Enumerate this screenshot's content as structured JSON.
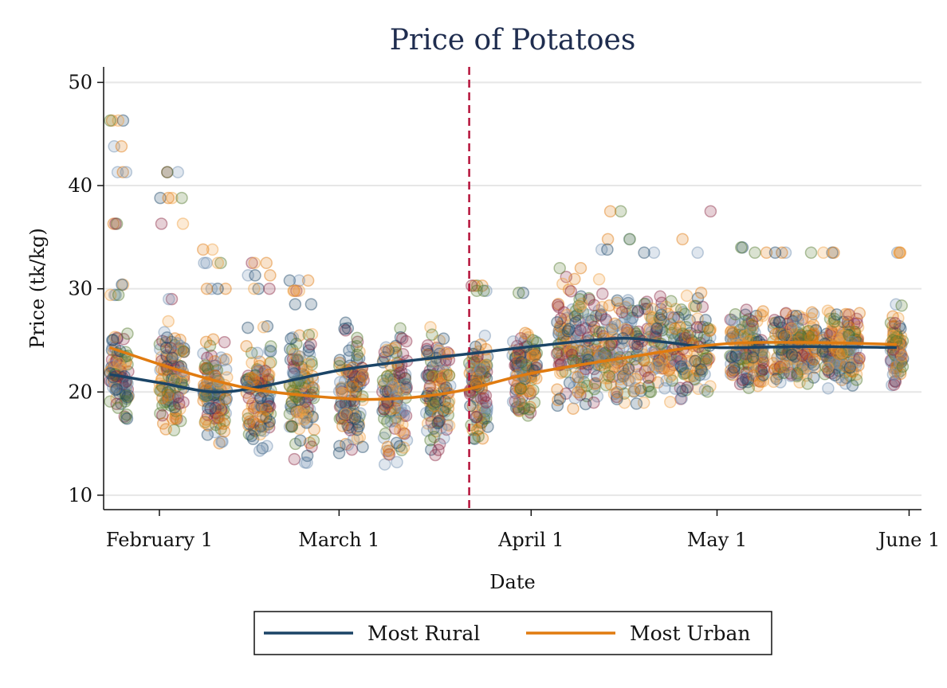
{
  "chart_data": {
    "type": "scatter",
    "title": "Price of Potatoes",
    "xlabel": "Date",
    "ylabel": "Price (tk/kg)",
    "x_ticks": [
      "February 1",
      "March 1",
      "April 1",
      "May 1",
      "June 1"
    ],
    "y_ticks": [
      10,
      20,
      30,
      40,
      50
    ],
    "ylim": [
      8.6,
      51.5
    ],
    "xlim": [
      "2020-01-23",
      "2020-06-03"
    ],
    "grid": true,
    "legend_position": "bottom",
    "reference_line": {
      "x": "2020-03-22",
      "style": "dashed",
      "color": "#b5123a"
    },
    "series": [
      {
        "name": "Most Rural",
        "type": "line",
        "color": "#1b4466",
        "x": [
          "2020-01-24",
          "2020-02-01",
          "2020-02-10",
          "2020-02-18",
          "2020-03-01",
          "2020-03-12",
          "2020-03-22",
          "2020-04-01",
          "2020-04-15",
          "2020-04-23",
          "2020-05-01",
          "2020-05-15",
          "2020-05-30"
        ],
        "values": [
          21.7,
          20.9,
          20.0,
          20.6,
          22.1,
          23.0,
          23.7,
          24.4,
          25.2,
          24.8,
          24.3,
          24.4,
          24.3
        ]
      },
      {
        "name": "Most Urban",
        "type": "line",
        "color": "#e07b10",
        "x": [
          "2020-01-24",
          "2020-02-01",
          "2020-02-10",
          "2020-02-18",
          "2020-03-01",
          "2020-03-08",
          "2020-03-15",
          "2020-03-22",
          "2020-04-01",
          "2020-04-15",
          "2020-05-01",
          "2020-05-15",
          "2020-05-30"
        ],
        "values": [
          24.3,
          22.7,
          21.1,
          20.1,
          19.4,
          19.3,
          19.6,
          20.3,
          21.8,
          23.2,
          24.6,
          24.8,
          24.6
        ]
      }
    ],
    "scatter_bands": [
      {
        "x": [
          "2020-01-24",
          "2020-01-27"
        ],
        "y": [
          16,
          27
        ],
        "outliers": [
          46.3,
          41.3,
          36.3,
          30.4,
          29.4,
          43.8
        ]
      },
      {
        "x": [
          "2020-02-01",
          "2020-02-05"
        ],
        "y": [
          15,
          27
        ],
        "outliers": [
          41.3,
          38.8,
          36.3,
          29.0
        ]
      },
      {
        "x": [
          "2020-02-08",
          "2020-02-12"
        ],
        "y": [
          14.5,
          26
        ],
        "outliers": [
          33.8,
          32.5,
          30.0
        ]
      },
      {
        "x": [
          "2020-02-15",
          "2020-02-19"
        ],
        "y": [
          13.5,
          26.5
        ],
        "outliers": [
          32.5,
          31.3,
          30.0
        ]
      },
      {
        "x": [
          "2020-02-22",
          "2020-02-26"
        ],
        "y": [
          12.5,
          27
        ],
        "outliers": [
          30.8,
          29.8,
          28.5
        ]
      },
      {
        "x": [
          "2020-03-01",
          "2020-03-05"
        ],
        "y": [
          12.5,
          27.3
        ],
        "outliers": []
      },
      {
        "x": [
          "2020-03-08",
          "2020-03-12"
        ],
        "y": [
          12.5,
          27.3
        ],
        "outliers": []
      },
      {
        "x": [
          "2020-03-15",
          "2020-03-19"
        ],
        "y": [
          12.5,
          27.3
        ],
        "outliers": []
      },
      {
        "x": [
          "2020-03-22",
          "2020-03-25"
        ],
        "y": [
          14.5,
          26
        ],
        "outliers": [
          30.3,
          29.8
        ]
      },
      {
        "x": [
          "2020-03-29",
          "2020-04-02"
        ],
        "y": [
          17,
          26.8
        ],
        "outliers": [
          29.6
        ]
      },
      {
        "x": [
          "2020-04-05",
          "2020-04-12"
        ],
        "y": [
          17.2,
          31.8
        ],
        "outliers": [
          32.0
        ]
      },
      {
        "x": [
          "2020-04-12",
          "2020-04-30"
        ],
        "y": [
          18.5,
          30.0
        ],
        "outliers": [
          37.5,
          34.8,
          33.8,
          33.5
        ]
      },
      {
        "x": [
          "2020-05-03",
          "2020-05-09"
        ],
        "y": [
          20.0,
          28.5
        ],
        "outliers": [
          34.0,
          33.5
        ]
      },
      {
        "x": [
          "2020-05-10",
          "2020-05-17"
        ],
        "y": [
          20.0,
          28.0
        ],
        "outliers": [
          33.5
        ]
      },
      {
        "x": [
          "2020-05-18",
          "2020-05-24"
        ],
        "y": [
          20.0,
          28.0
        ],
        "outliers": [
          33.5,
          27.5
        ]
      },
      {
        "x": [
          "2020-05-29",
          "2020-05-31"
        ],
        "y": [
          20.0,
          29.0
        ],
        "outliers": [
          33.5
        ]
      }
    ],
    "scatter_colors": [
      "#1b4466",
      "#e07b10",
      "#8b2a44",
      "#557a2f",
      "#6f8fb0",
      "#f0a040"
    ]
  }
}
